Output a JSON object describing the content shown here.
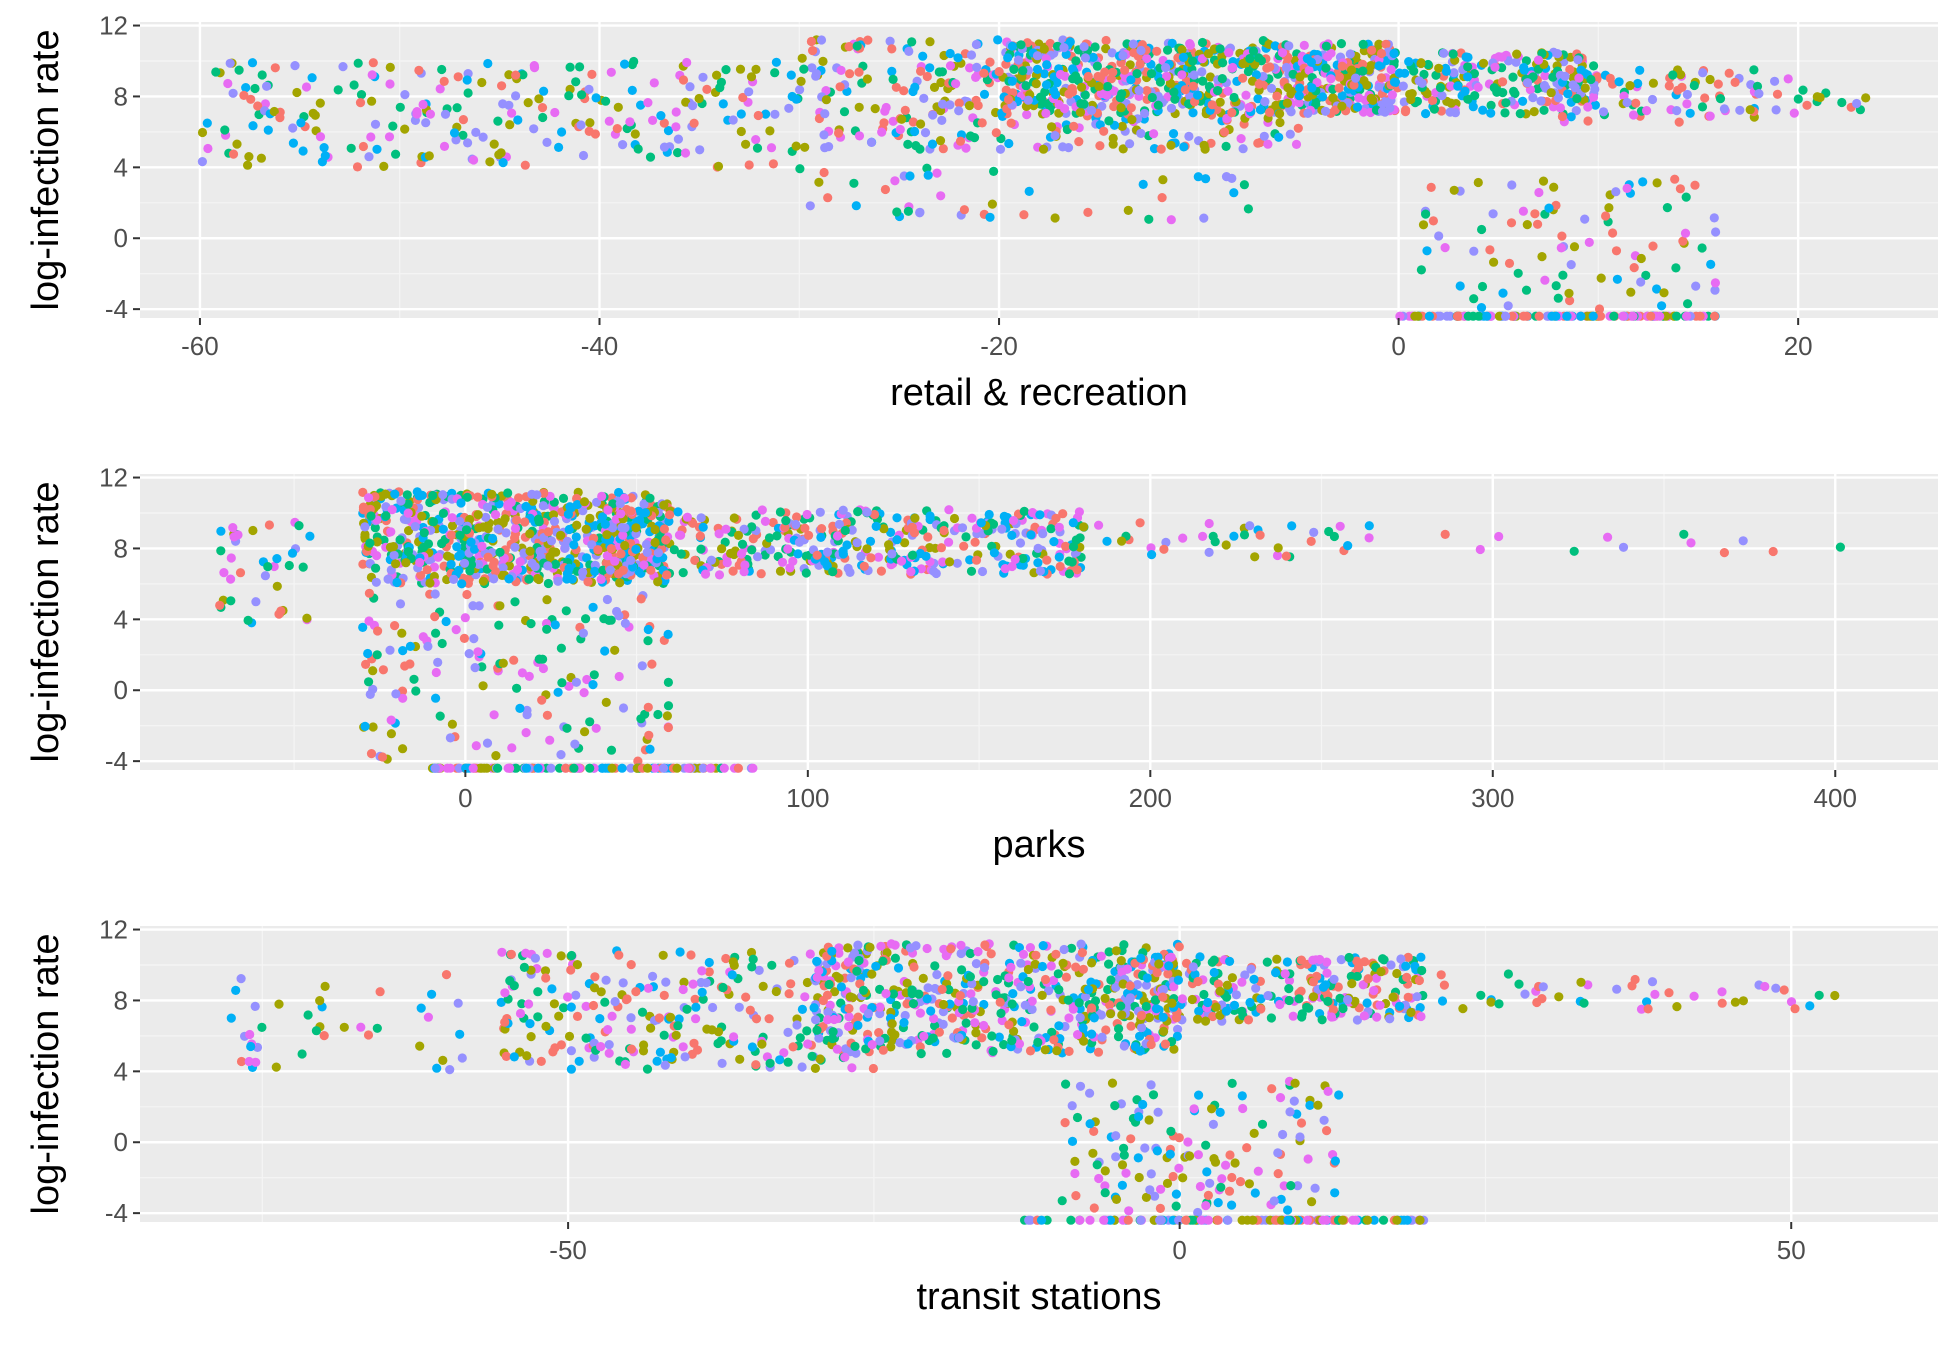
{
  "colors": {
    "panel_background": "#ebebeb",
    "grid_major": "#ffffff",
    "grid_minor": "#f5f5f5",
    "tick": "#333333",
    "tick_label": "#4d4d4d",
    "series_palette": [
      "#f8766d",
      "#a3a500",
      "#00bf7d",
      "#00b0f6",
      "#e76bf3",
      "#9590ff"
    ]
  },
  "chart_data": [
    {
      "type": "scatter",
      "xlabel": "retail & recreation",
      "ylabel": "log-infection rate",
      "xlim": [
        -63,
        27
      ],
      "ylim": [
        -4.5,
        12.2
      ],
      "xticks": [
        -60,
        -40,
        -20,
        0,
        20
      ],
      "xtick_labels": [
        "-60",
        "-40",
        "-20",
        "0",
        "20"
      ],
      "yticks": [
        -4,
        0,
        4,
        8,
        12
      ],
      "ytick_labels": [
        "-4",
        "0",
        "4",
        "8",
        "12"
      ],
      "grid": true,
      "legend": "none",
      "point_clusters": [
        {
          "x": [
            -60,
            -30
          ],
          "y": [
            4,
            10
          ],
          "n": 260
        },
        {
          "x": [
            -30,
            -5
          ],
          "y": [
            5,
            11.2
          ],
          "n": 420
        },
        {
          "x": [
            -20,
            0
          ],
          "y": [
            7,
            11
          ],
          "n": 520
        },
        {
          "x": [
            -5,
            10
          ],
          "y": [
            7,
            10.5
          ],
          "n": 320
        },
        {
          "x": [
            8,
            18
          ],
          "y": [
            6.5,
            9.5
          ],
          "n": 80
        },
        {
          "x": [
            18,
            24
          ],
          "y": [
            7,
            9
          ],
          "n": 18
        },
        {
          "x": [
            -30,
            -7
          ],
          "y": [
            1,
            4
          ],
          "n": 45
        },
        {
          "x": [
            1,
            16
          ],
          "y": [
            -4,
            3.4
          ],
          "n": 95
        },
        {
          "x": [
            0,
            16
          ],
          "y": [
            -4.4,
            -4.4
          ],
          "n": 120
        }
      ]
    },
    {
      "type": "scatter",
      "xlabel": "parks",
      "ylabel": "log-infection rate",
      "xlim": [
        -95,
        430
      ],
      "ylim": [
        -4.5,
        12.2
      ],
      "xticks": [
        0,
        100,
        200,
        300,
        400
      ],
      "xtick_labels": [
        "0",
        "100",
        "200",
        "300",
        "400"
      ],
      "yticks": [
        -4,
        0,
        4,
        8,
        12
      ],
      "ytick_labels": [
        "-4",
        "0",
        "4",
        "8",
        "12"
      ],
      "grid": true,
      "legend": "none",
      "point_clusters": [
        {
          "x": [
            -72,
            -45
          ],
          "y": [
            3.8,
            9.5
          ],
          "n": 40
        },
        {
          "x": [
            -30,
            60
          ],
          "y": [
            6,
            11.2
          ],
          "n": 700
        },
        {
          "x": [
            40,
            180
          ],
          "y": [
            6.5,
            10.2
          ],
          "n": 450
        },
        {
          "x": [
            180,
            265
          ],
          "y": [
            7.5,
            9.5
          ],
          "n": 40
        },
        {
          "x": [
            280,
            410
          ],
          "y": [
            7.7,
            9
          ],
          "n": 12
        },
        {
          "x": [
            -30,
            60
          ],
          "y": [
            -4,
            5.5
          ],
          "n": 170
        },
        {
          "x": [
            -10,
            85
          ],
          "y": [
            -4.4,
            -4.4
          ],
          "n": 110
        }
      ]
    },
    {
      "type": "scatter",
      "xlabel": "transit stations",
      "ylabel": "log-infection rate",
      "xlim": [
        -85,
        62
      ],
      "ylim": [
        -4.5,
        12.2
      ],
      "xticks": [
        -50,
        0,
        50
      ],
      "xtick_labels": [
        "-50",
        "0",
        "50"
      ],
      "yticks": [
        -4,
        0,
        4,
        8,
        12
      ],
      "ytick_labels": [
        "-4",
        "0",
        "4",
        "8",
        "12"
      ],
      "grid": true,
      "legend": "none",
      "point_clusters": [
        {
          "x": [
            -78,
            -58
          ],
          "y": [
            3.8,
            9.5
          ],
          "n": 40
        },
        {
          "x": [
            -56,
            -25
          ],
          "y": [
            4,
            10.8
          ],
          "n": 280
        },
        {
          "x": [
            -30,
            0
          ],
          "y": [
            5,
            11.2
          ],
          "n": 520
        },
        {
          "x": [
            -5,
            20
          ],
          "y": [
            6.8,
            10.5
          ],
          "n": 320
        },
        {
          "x": [
            20,
            55
          ],
          "y": [
            7.5,
            9.5
          ],
          "n": 45
        },
        {
          "x": [
            -10,
            13
          ],
          "y": [
            -4,
            3.5
          ],
          "n": 150
        },
        {
          "x": [
            -13,
            20
          ],
          "y": [
            -4.4,
            -4.4
          ],
          "n": 120
        }
      ]
    }
  ]
}
